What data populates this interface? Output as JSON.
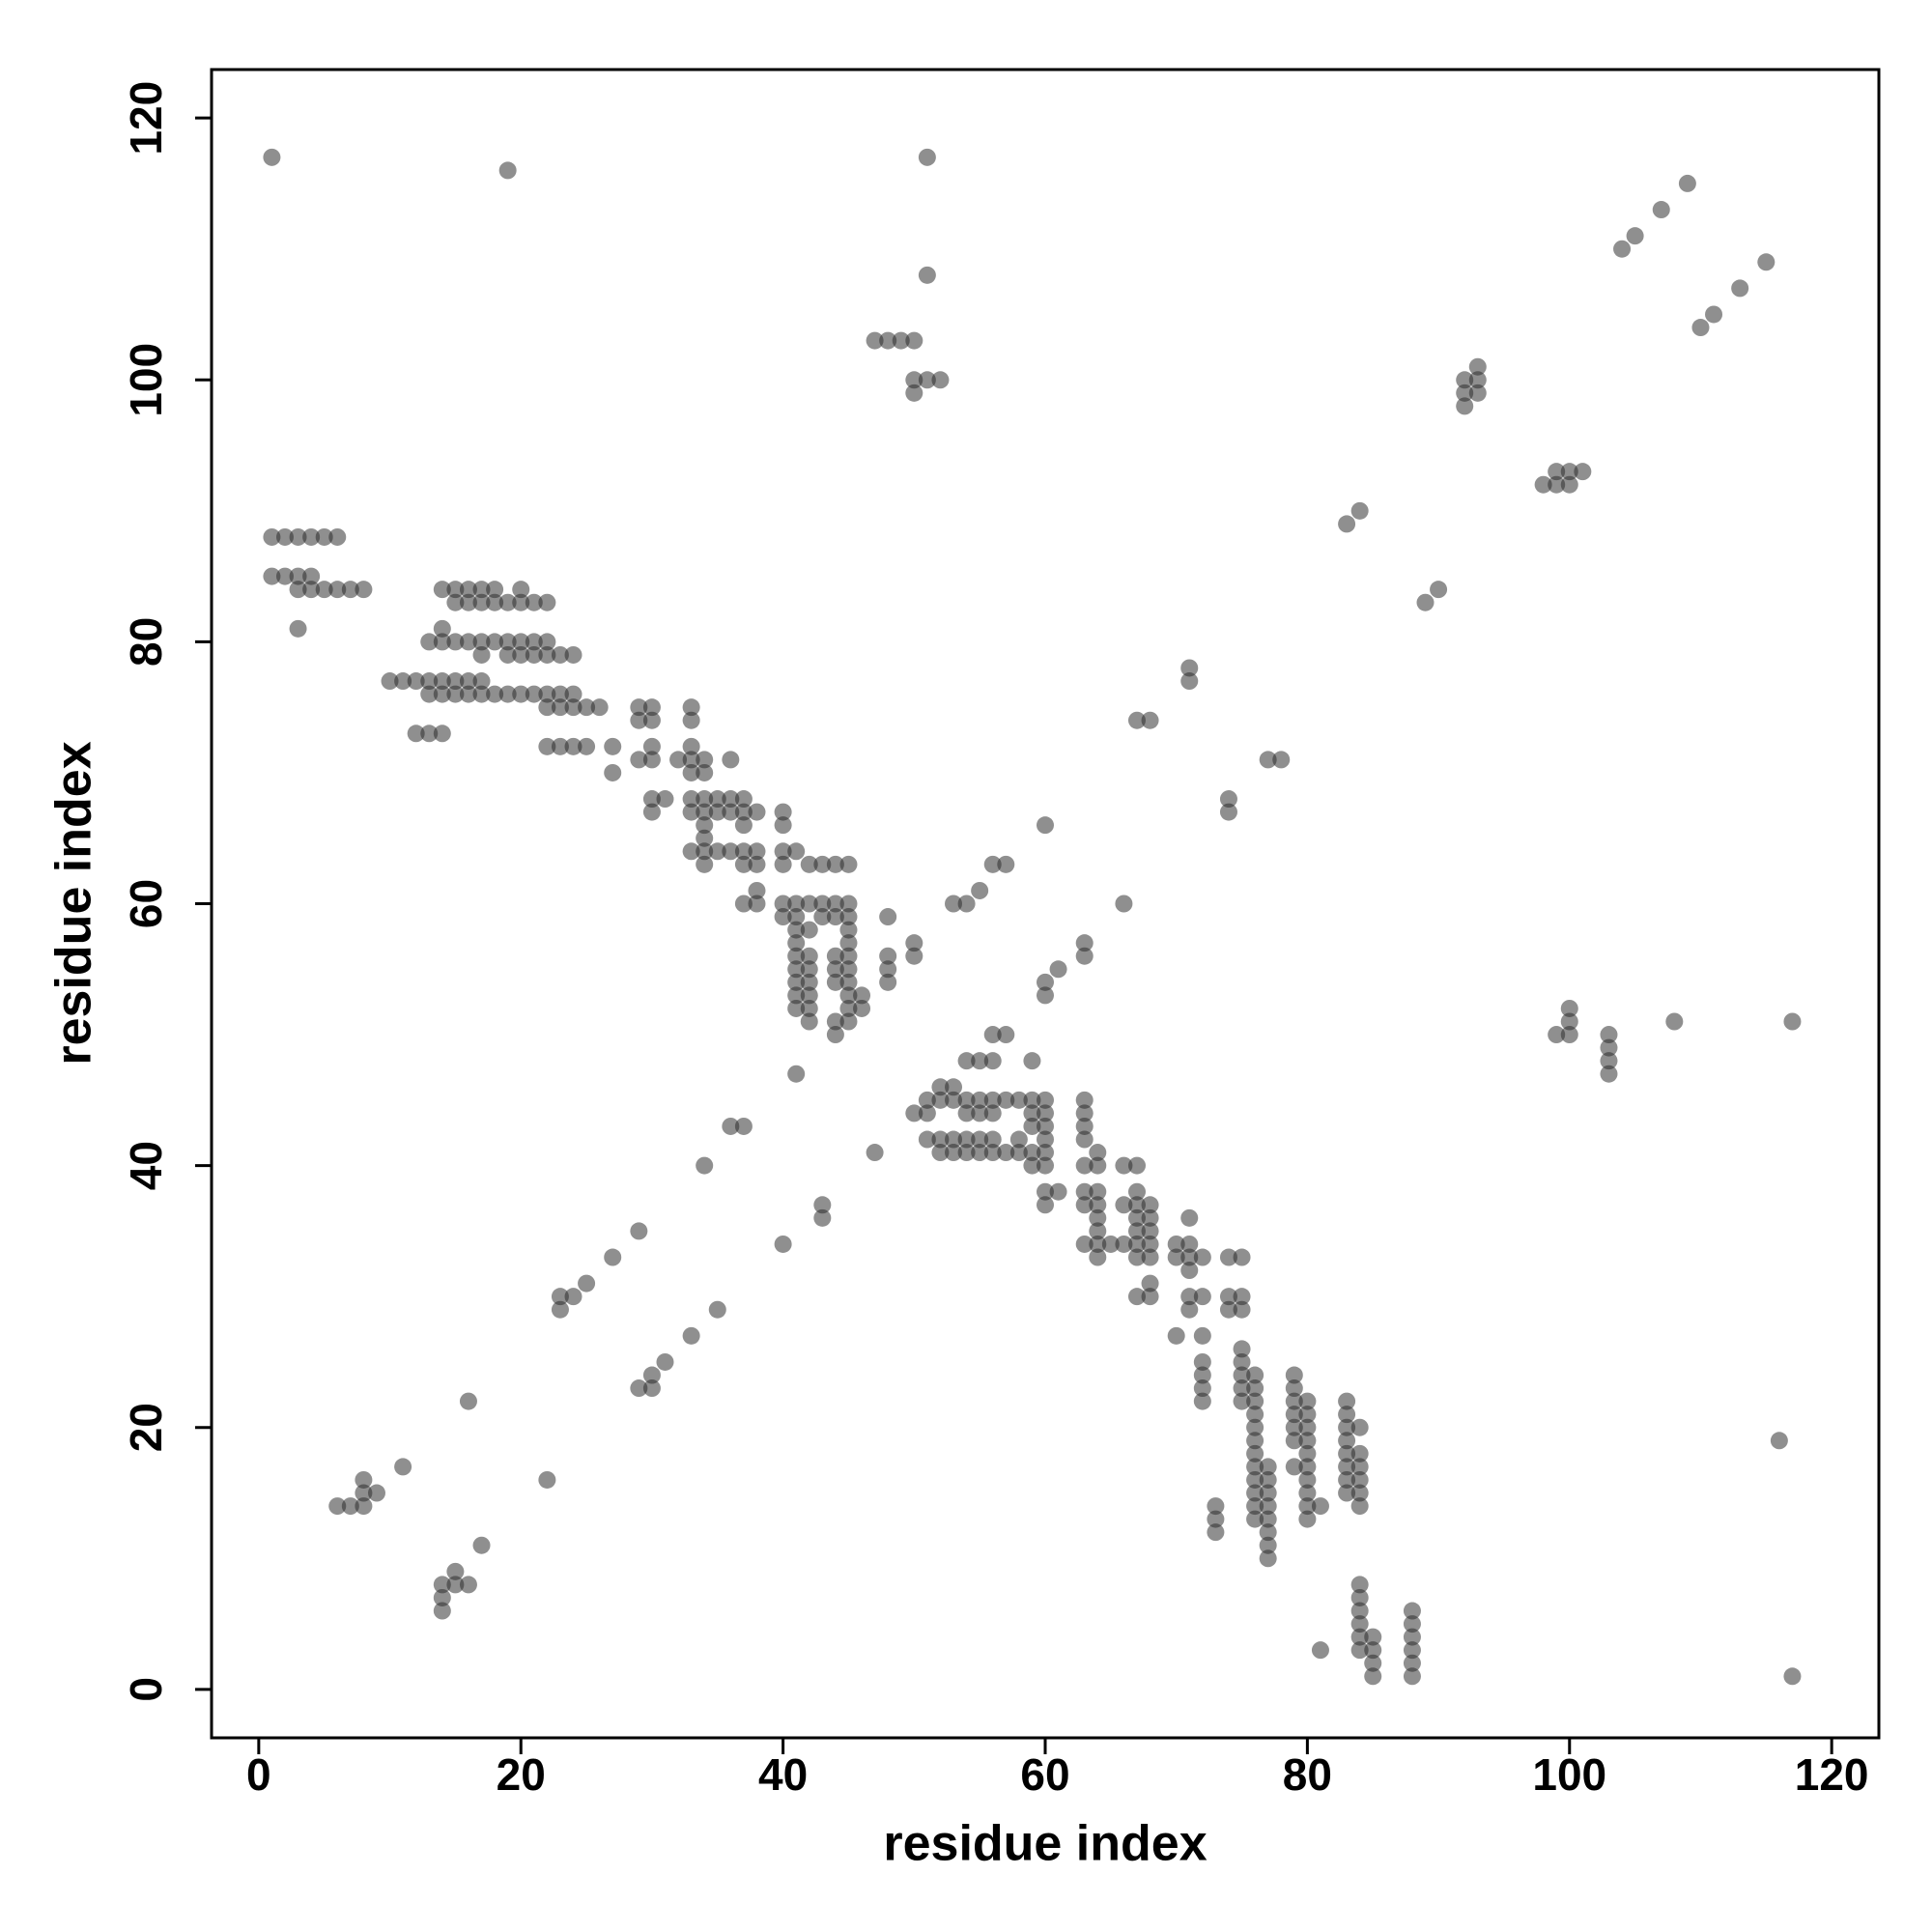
{
  "chart_data": {
    "type": "scatter",
    "xlabel": "residue index",
    "ylabel": "residue index",
    "xlim": [
      -3.6,
      123.6
    ],
    "ylim": [
      -3.7,
      123.7
    ],
    "xticks": [
      0,
      20,
      40,
      60,
      80,
      100,
      120
    ],
    "yticks": [
      0,
      20,
      40,
      60,
      80,
      100,
      120
    ],
    "series": [
      {
        "color": "rgba(40,40,40,0.52)",
        "x": [
          1,
          51,
          19,
          51,
          47,
          48,
          49,
          50,
          50,
          51,
          52,
          50,
          92,
          92,
          92,
          93,
          93,
          93,
          109,
          107,
          105,
          104,
          83,
          84,
          67,
          68,
          71,
          71,
          60,
          55,
          56,
          57,
          53,
          54,
          1,
          2,
          3,
          4,
          5,
          6,
          1,
          2,
          3,
          4,
          3,
          4,
          5,
          6,
          7,
          8,
          3,
          14,
          15,
          16,
          17,
          18,
          20,
          15,
          16,
          17,
          18,
          19,
          20,
          21,
          22,
          14,
          13,
          14,
          15,
          16,
          17,
          18,
          19,
          20,
          21,
          22,
          17,
          19,
          20,
          21,
          22,
          23,
          24,
          10,
          11,
          12,
          13,
          14,
          15,
          16,
          17,
          13,
          14,
          15,
          16,
          17,
          18,
          19,
          20,
          21,
          22,
          23,
          24,
          22,
          23,
          24,
          25,
          26,
          29,
          30,
          33,
          29,
          30,
          33,
          12,
          13,
          14,
          22,
          23,
          24,
          25,
          27,
          30,
          33,
          27,
          29,
          30,
          32,
          33,
          34,
          36,
          33,
          34,
          30,
          31,
          33,
          34,
          35,
          36,
          37,
          30,
          33,
          34,
          35,
          36,
          37,
          38,
          40,
          34,
          37,
          40,
          34,
          33,
          34,
          35,
          36,
          37,
          38,
          40,
          41,
          34,
          37,
          38,
          40,
          42,
          43,
          44,
          45,
          38,
          37,
          38,
          40,
          41,
          42,
          43,
          44,
          45,
          40,
          41,
          43,
          44,
          45,
          48,
          41,
          42,
          45,
          41,
          45,
          50,
          41,
          42,
          44,
          45,
          48,
          50,
          41,
          42,
          44,
          45,
          48,
          41,
          42,
          44,
          45,
          48,
          41,
          42,
          45,
          46,
          41,
          42,
          45,
          46,
          42,
          44,
          45,
          44,
          41,
          6,
          7,
          8,
          8,
          8,
          9,
          11,
          16,
          23,
          23,
          24,
          25,
          27,
          29,
          34,
          36,
          37,
          117,
          117,
          116,
          108,
          103,
          103,
          103,
          103,
          100,
          100,
          100,
          99,
          98,
          99,
          100,
          99,
          100,
          101,
          115,
          113,
          111,
          110,
          89,
          90,
          74,
          74,
          77,
          78,
          66,
          61,
          63,
          63,
          60,
          60,
          88,
          88,
          88,
          88,
          88,
          88,
          85,
          85,
          85,
          85,
          84,
          84,
          84,
          84,
          84,
          84,
          81,
          84,
          84,
          84,
          84,
          84,
          84,
          83,
          83,
          83,
          83,
          83,
          83,
          83,
          83,
          81,
          80,
          80,
          80,
          80,
          80,
          80,
          80,
          80,
          80,
          80,
          79,
          79,
          79,
          79,
          79,
          79,
          79,
          77,
          77,
          77,
          77,
          77,
          77,
          77,
          77,
          76,
          76,
          76,
          76,
          76,
          76,
          76,
          76,
          76,
          76,
          76,
          76,
          75,
          75,
          75,
          75,
          75,
          75,
          75,
          75,
          74,
          74,
          74,
          73,
          73,
          73,
          72,
          72,
          72,
          72,
          72,
          72,
          72,
          70,
          71,
          71,
          71,
          71,
          71,
          71,
          70,
          70,
          68,
          68,
          68,
          68,
          68,
          68,
          68,
          67,
          67,
          67,
          67,
          67,
          67,
          67,
          67,
          66,
          66,
          66,
          65,
          64,
          64,
          64,
          64,
          64,
          64,
          64,
          64,
          63,
          63,
          63,
          63,
          63,
          63,
          63,
          63,
          61,
          60,
          60,
          60,
          60,
          60,
          60,
          60,
          60,
          59,
          59,
          59,
          59,
          59,
          59,
          58,
          58,
          58,
          57,
          57,
          57,
          56,
          56,
          56,
          56,
          56,
          56,
          55,
          55,
          55,
          55,
          55,
          54,
          54,
          54,
          54,
          54,
          53,
          53,
          53,
          53,
          52,
          52,
          52,
          52,
          51,
          51,
          51,
          50,
          47,
          14,
          14,
          14,
          15,
          16,
          15,
          17,
          22,
          29,
          30,
          30,
          31,
          33,
          35,
          40,
          43,
          43
        ],
        "values": [
          117,
          117,
          116,
          108,
          103,
          103,
          103,
          103,
          100,
          100,
          100,
          99,
          98,
          99,
          100,
          99,
          100,
          101,
          115,
          113,
          111,
          110,
          89,
          90,
          74,
          74,
          77,
          78,
          66,
          61,
          63,
          63,
          60,
          60,
          88,
          88,
          88,
          88,
          88,
          88,
          85,
          85,
          85,
          85,
          84,
          84,
          84,
          84,
          84,
          84,
          81,
          84,
          84,
          84,
          84,
          84,
          84,
          83,
          83,
          83,
          83,
          83,
          83,
          83,
          83,
          81,
          80,
          80,
          80,
          80,
          80,
          80,
          80,
          80,
          80,
          80,
          79,
          79,
          79,
          79,
          79,
          79,
          79,
          77,
          77,
          77,
          77,
          77,
          77,
          77,
          77,
          76,
          76,
          76,
          76,
          76,
          76,
          76,
          76,
          76,
          76,
          76,
          76,
          75,
          75,
          75,
          75,
          75,
          75,
          75,
          75,
          74,
          74,
          74,
          73,
          73,
          73,
          72,
          72,
          72,
          72,
          72,
          72,
          72,
          70,
          71,
          71,
          71,
          71,
          71,
          71,
          70,
          70,
          68,
          68,
          68,
          68,
          68,
          68,
          68,
          67,
          67,
          67,
          67,
          67,
          67,
          67,
          67,
          66,
          66,
          66,
          65,
          64,
          64,
          64,
          64,
          64,
          64,
          64,
          64,
          63,
          63,
          63,
          63,
          63,
          63,
          63,
          63,
          61,
          60,
          60,
          60,
          60,
          60,
          60,
          60,
          60,
          59,
          59,
          59,
          59,
          59,
          59,
          58,
          58,
          58,
          57,
          57,
          57,
          56,
          56,
          56,
          56,
          56,
          56,
          55,
          55,
          55,
          55,
          55,
          54,
          54,
          54,
          54,
          54,
          53,
          53,
          53,
          53,
          52,
          52,
          52,
          52,
          51,
          51,
          51,
          50,
          47,
          14,
          14,
          14,
          15,
          16,
          15,
          17,
          22,
          29,
          30,
          30,
          31,
          33,
          35,
          40,
          43,
          43,
          1,
          51,
          19,
          51,
          47,
          48,
          49,
          50,
          50,
          51,
          52,
          50,
          92,
          92,
          92,
          93,
          93,
          93,
          109,
          107,
          105,
          104,
          83,
          84,
          67,
          68,
          71,
          71,
          60,
          55,
          56,
          57,
          53,
          54,
          1,
          2,
          3,
          4,
          5,
          6,
          1,
          2,
          3,
          4,
          3,
          4,
          5,
          6,
          7,
          8,
          3,
          14,
          15,
          16,
          17,
          18,
          20,
          15,
          16,
          17,
          18,
          19,
          20,
          21,
          22,
          14,
          13,
          14,
          15,
          16,
          17,
          18,
          19,
          20,
          21,
          22,
          17,
          19,
          20,
          21,
          22,
          23,
          24,
          10,
          11,
          12,
          13,
          14,
          15,
          16,
          17,
          13,
          14,
          15,
          16,
          17,
          18,
          19,
          20,
          21,
          22,
          23,
          24,
          22,
          23,
          24,
          25,
          26,
          29,
          30,
          33,
          29,
          30,
          33,
          12,
          13,
          14,
          22,
          23,
          24,
          25,
          27,
          30,
          33,
          27,
          29,
          30,
          32,
          33,
          34,
          36,
          33,
          34,
          30,
          31,
          33,
          34,
          35,
          36,
          37,
          30,
          33,
          34,
          35,
          36,
          37,
          38,
          40,
          34,
          37,
          40,
          34,
          33,
          34,
          35,
          36,
          37,
          38,
          40,
          41,
          34,
          37,
          38,
          40,
          42,
          43,
          44,
          45,
          38,
          37,
          38,
          40,
          41,
          42,
          43,
          44,
          45,
          40,
          41,
          43,
          44,
          45,
          48,
          41,
          42,
          45,
          41,
          45,
          50,
          41,
          42,
          44,
          45,
          48,
          50,
          41,
          42,
          44,
          45,
          48,
          41,
          42,
          44,
          45,
          48,
          41,
          42,
          45,
          46,
          41,
          42,
          45,
          46,
          42,
          44,
          45,
          44,
          41,
          6,
          7,
          8,
          8,
          8,
          9,
          11,
          16,
          23,
          23,
          24,
          25,
          27,
          29,
          34,
          36,
          37
        ]
      }
    ]
  }
}
